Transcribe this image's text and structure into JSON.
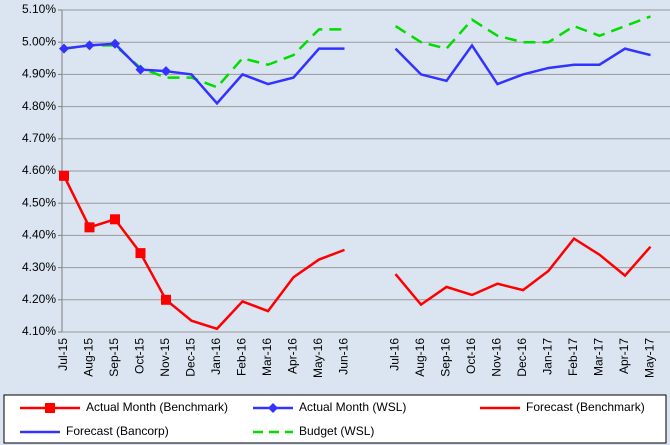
{
  "chart_data": {
    "type": "line",
    "categories": [
      "Jul-15",
      "Aug-15",
      "Sep-15",
      "Oct-15",
      "Nov-15",
      "Dec-15",
      "Jan-16",
      "Feb-16",
      "Mar-16",
      "Apr-16",
      "May-16",
      "Jun-16",
      null,
      "Jul-16",
      "Aug-16",
      "Sep-16",
      "Oct-16",
      "Nov-16",
      "Dec-16",
      "Jan-17",
      "Feb-17",
      "Mar-17",
      "Apr-17",
      "May-17"
    ],
    "series": [
      {
        "name": "Actual Month (Benchmark)",
        "color": "#ff0000",
        "marker": "square",
        "dash": false,
        "values": [
          4.585,
          4.425,
          4.45,
          4.345,
          4.2,
          null,
          null,
          null,
          null,
          null,
          null,
          null,
          null,
          null,
          null,
          null,
          null,
          null,
          null,
          null,
          null,
          null,
          null,
          null
        ]
      },
      {
        "name": "Actual Month (WSL)",
        "color": "#3333ff",
        "marker": "diamond",
        "dash": false,
        "values": [
          4.98,
          4.99,
          4.995,
          4.915,
          4.91,
          null,
          null,
          null,
          null,
          null,
          null,
          null,
          null,
          null,
          null,
          null,
          null,
          null,
          null,
          null,
          null,
          null,
          null,
          null
        ]
      },
      {
        "name": "Forecast (Benchmark)",
        "color": "#ff0000",
        "marker": "none",
        "dash": false,
        "values": [
          null,
          null,
          null,
          null,
          4.2,
          4.135,
          4.11,
          4.195,
          4.165,
          4.27,
          4.325,
          4.355,
          null,
          4.28,
          4.185,
          4.24,
          4.215,
          4.25,
          4.23,
          4.29,
          4.39,
          4.34,
          4.275,
          4.365
        ]
      },
      {
        "name": "Forecast (Bancorp)",
        "color": "#3333ff",
        "marker": "none",
        "dash": false,
        "values": [
          null,
          null,
          null,
          null,
          4.91,
          4.9,
          4.81,
          4.9,
          4.87,
          4.89,
          4.98,
          4.98,
          null,
          4.98,
          4.9,
          4.88,
          4.99,
          4.87,
          4.9,
          4.92,
          4.93,
          4.93,
          4.98,
          4.96
        ]
      },
      {
        "name": "Budget (WSL)",
        "color": "#00dd00",
        "marker": "none",
        "dash": true,
        "values": [
          4.98,
          4.99,
          4.99,
          4.92,
          4.89,
          4.89,
          4.86,
          4.95,
          4.93,
          4.96,
          5.04,
          5.04,
          null,
          5.05,
          5.0,
          4.98,
          5.07,
          5.02,
          5.0,
          5.0,
          5.05,
          5.02,
          5.05,
          5.08
        ]
      }
    ],
    "ylim": [
      4.1,
      5.1
    ],
    "yticks": [
      {
        "value": 4.1,
        "label": "4.10%"
      },
      {
        "value": 4.2,
        "label": "4.20%"
      },
      {
        "value": 4.3,
        "label": "4.30%"
      },
      {
        "value": 4.4,
        "label": "4.40%"
      },
      {
        "value": 4.5,
        "label": "4.50%"
      },
      {
        "value": 4.6,
        "label": "4.60%"
      },
      {
        "value": 4.7,
        "label": "4.70%"
      },
      {
        "value": 4.8,
        "label": "4.80%"
      },
      {
        "value": 4.9,
        "label": "4.90%"
      },
      {
        "value": 5.0,
        "label": "5.00%"
      },
      {
        "value": 5.1,
        "label": "5.10%"
      }
    ],
    "grid": true
  }
}
